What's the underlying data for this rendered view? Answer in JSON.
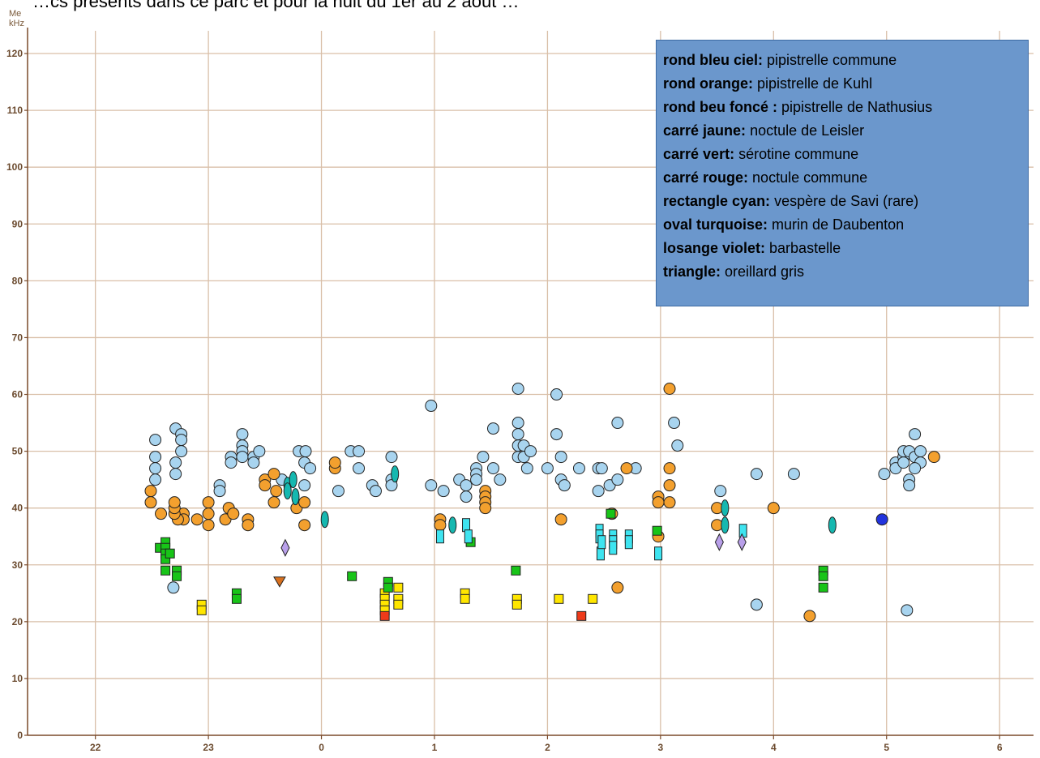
{
  "caption": "…cs présents dans ce parc et pour la nuit du 1er au 2 août …",
  "chart_data": {
    "type": "scatter",
    "title": "",
    "ylabel_top": "Me",
    "ylabel_unit": "kHz",
    "xlabel": "",
    "x_ticks": [
      {
        "value": 22,
        "label": "22"
      },
      {
        "value": 23,
        "label": "23"
      },
      {
        "value": 24,
        "label": "0"
      },
      {
        "value": 25,
        "label": "1"
      },
      {
        "value": 26,
        "label": "2"
      },
      {
        "value": 27,
        "label": "3"
      },
      {
        "value": 28,
        "label": "4"
      },
      {
        "value": 29,
        "label": "5"
      },
      {
        "value": 30,
        "label": "6"
      }
    ],
    "xlim": [
      21.4,
      30.3
    ],
    "ylim": [
      0,
      124
    ],
    "y_ticks": [
      0,
      10,
      20,
      30,
      40,
      50,
      60,
      70,
      80,
      90,
      100,
      110,
      120
    ],
    "grid": true,
    "legend_position": "top-right",
    "legend": [
      {
        "key": "rond bleu ciel:",
        "desc": " pipistrelle commune"
      },
      {
        "key": "rond orange:",
        "desc": " pipistrelle de Kuhl"
      },
      {
        "key": "rond beu foncé :",
        "desc": " pipistrelle de Nathusius"
      },
      {
        "key": "carré jaune:",
        "desc": " noctule de Leisler"
      },
      {
        "key": "carré vert:",
        "desc": " sérotine commune"
      },
      {
        "key": "carré rouge:",
        "desc": " noctule commune"
      },
      {
        "key": "rectangle cyan:",
        "desc": " vespère de Savi (rare)"
      },
      {
        "key": "oval turquoise:",
        "desc": " murin de Daubenton"
      },
      {
        "key": "losange violet:",
        "desc": " barbastelle"
      },
      {
        "key": "triangle:",
        "desc": " oreillard gris"
      }
    ],
    "colors": {
      "grid": "#d9bfa8",
      "axis": "#7a4a2a",
      "pip_commune": "#a8d4ef",
      "pip_kuhl": "#f3a02e",
      "pip_nathusius": "#2233dd",
      "leisler": "#ffe600",
      "serotine": "#18c418",
      "noctule": "#ee3a1a",
      "savi": "#3ee4f0",
      "daubenton": "#16b8b0",
      "barbastelle": "#b9a0ea",
      "oreillard": "#d8701e"
    },
    "series": [
      {
        "name": "pipistrelle commune",
        "marker": "circle",
        "color": "#a8d4ef",
        "points": [
          [
            22.53,
            52
          ],
          [
            22.53,
            49
          ],
          [
            22.53,
            47
          ],
          [
            22.53,
            45
          ],
          [
            22.71,
            54
          ],
          [
            22.76,
            53
          ],
          [
            22.76,
            52
          ],
          [
            22.76,
            50
          ],
          [
            22.71,
            48
          ],
          [
            22.71,
            46
          ],
          [
            22.69,
            26
          ],
          [
            23.1,
            44
          ],
          [
            23.1,
            43
          ],
          [
            23.3,
            53
          ],
          [
            23.3,
            51
          ],
          [
            23.3,
            50
          ],
          [
            23.3,
            49
          ],
          [
            23.2,
            49
          ],
          [
            23.2,
            48
          ],
          [
            23.4,
            49
          ],
          [
            23.4,
            48
          ],
          [
            23.45,
            50
          ],
          [
            23.65,
            45
          ],
          [
            23.8,
            50
          ],
          [
            23.86,
            50
          ],
          [
            23.85,
            48
          ],
          [
            23.9,
            47
          ],
          [
            23.85,
            44
          ],
          [
            24.15,
            43
          ],
          [
            24.26,
            50
          ],
          [
            24.33,
            50
          ],
          [
            24.33,
            47
          ],
          [
            24.45,
            44
          ],
          [
            24.48,
            43
          ],
          [
            24.62,
            49
          ],
          [
            24.62,
            45
          ],
          [
            24.62,
            44
          ],
          [
            24.97,
            58
          ],
          [
            24.97,
            44
          ],
          [
            25.08,
            43
          ],
          [
            25.22,
            45
          ],
          [
            25.28,
            44
          ],
          [
            25.28,
            42
          ],
          [
            25.37,
            47
          ],
          [
            25.37,
            46
          ],
          [
            25.37,
            45
          ],
          [
            25.43,
            49
          ],
          [
            25.52,
            54
          ],
          [
            25.52,
            47
          ],
          [
            25.58,
            45
          ],
          [
            25.74,
            61
          ],
          [
            25.74,
            55
          ],
          [
            25.74,
            53
          ],
          [
            25.74,
            51
          ],
          [
            25.74,
            49
          ],
          [
            25.79,
            51
          ],
          [
            25.79,
            49
          ],
          [
            25.85,
            50
          ],
          [
            25.82,
            47
          ],
          [
            26.0,
            47
          ],
          [
            26.08,
            60
          ],
          [
            26.08,
            53
          ],
          [
            26.12,
            49
          ],
          [
            26.12,
            45
          ],
          [
            26.15,
            44
          ],
          [
            26.28,
            47
          ],
          [
            26.45,
            47
          ],
          [
            26.48,
            47
          ],
          [
            26.45,
            43
          ],
          [
            26.55,
            44
          ],
          [
            26.62,
            45
          ],
          [
            26.62,
            55
          ],
          [
            26.78,
            47
          ],
          [
            27.12,
            55
          ],
          [
            27.15,
            51
          ],
          [
            27.53,
            43
          ],
          [
            27.85,
            46
          ],
          [
            27.85,
            23
          ],
          [
            28.18,
            46
          ],
          [
            28.98,
            46
          ],
          [
            29.08,
            48
          ],
          [
            29.08,
            47
          ],
          [
            29.15,
            49
          ],
          [
            29.15,
            48
          ],
          [
            29.15,
            50
          ],
          [
            29.2,
            45
          ],
          [
            29.2,
            44
          ],
          [
            29.2,
            50
          ],
          [
            29.25,
            49
          ],
          [
            29.25,
            53
          ],
          [
            29.3,
            50
          ],
          [
            29.3,
            48
          ],
          [
            29.25,
            47
          ],
          [
            29.18,
            22
          ]
        ]
      },
      {
        "name": "pipistrelle de Kuhl",
        "marker": "circle",
        "color": "#f3a02e",
        "points": [
          [
            22.49,
            43
          ],
          [
            22.49,
            41
          ],
          [
            22.58,
            39
          ],
          [
            22.78,
            39
          ],
          [
            22.78,
            38
          ],
          [
            22.73,
            38
          ],
          [
            22.7,
            39
          ],
          [
            22.7,
            40
          ],
          [
            22.7,
            41
          ],
          [
            22.9,
            38
          ],
          [
            23.0,
            41
          ],
          [
            23.0,
            39
          ],
          [
            23.0,
            37
          ],
          [
            23.15,
            38
          ],
          [
            23.18,
            40
          ],
          [
            23.22,
            39
          ],
          [
            23.35,
            38
          ],
          [
            23.35,
            37
          ],
          [
            23.5,
            45
          ],
          [
            23.5,
            44
          ],
          [
            23.58,
            46
          ],
          [
            23.6,
            43
          ],
          [
            23.58,
            41
          ],
          [
            23.78,
            40
          ],
          [
            23.85,
            41
          ],
          [
            23.85,
            37
          ],
          [
            24.12,
            47
          ],
          [
            24.12,
            48
          ],
          [
            25.05,
            38
          ],
          [
            25.05,
            37
          ],
          [
            25.45,
            43
          ],
          [
            25.45,
            42
          ],
          [
            25.45,
            41
          ],
          [
            25.45,
            40
          ],
          [
            26.12,
            38
          ],
          [
            26.57,
            39
          ],
          [
            26.62,
            26
          ],
          [
            26.7,
            47
          ],
          [
            26.98,
            42
          ],
          [
            26.98,
            41
          ],
          [
            26.98,
            35
          ],
          [
            27.08,
            61
          ],
          [
            27.08,
            47
          ],
          [
            27.08,
            44
          ],
          [
            27.08,
            41
          ],
          [
            27.5,
            40
          ],
          [
            27.5,
            37
          ],
          [
            28.0,
            40
          ],
          [
            29.42,
            49
          ],
          [
            28.32,
            21
          ]
        ]
      },
      {
        "name": "pipistrelle de Nathusius",
        "marker": "circle",
        "color": "#2233dd",
        "points": [
          [
            28.96,
            38
          ]
        ]
      },
      {
        "name": "noctule de Leisler",
        "marker": "square",
        "color": "#ffe600",
        "points": [
          [
            22.94,
            23
          ],
          [
            22.94,
            22
          ],
          [
            24.56,
            25
          ],
          [
            24.56,
            24
          ],
          [
            24.56,
            23
          ],
          [
            24.56,
            22
          ],
          [
            24.68,
            26
          ],
          [
            24.68,
            24
          ],
          [
            24.68,
            23
          ],
          [
            25.27,
            25
          ],
          [
            25.27,
            24
          ],
          [
            25.73,
            24
          ],
          [
            25.73,
            23
          ],
          [
            26.1,
            24
          ],
          [
            26.4,
            24
          ]
        ]
      },
      {
        "name": "sérotine commune",
        "marker": "square",
        "color": "#18c418",
        "points": [
          [
            22.57,
            33
          ],
          [
            22.62,
            34
          ],
          [
            22.62,
            33
          ],
          [
            22.62,
            32
          ],
          [
            22.62,
            31
          ],
          [
            22.62,
            29
          ],
          [
            22.66,
            32
          ],
          [
            22.72,
            29
          ],
          [
            22.72,
            28
          ],
          [
            23.25,
            25
          ],
          [
            23.25,
            24
          ],
          [
            24.27,
            28
          ],
          [
            24.59,
            27
          ],
          [
            24.59,
            26
          ],
          [
            25.32,
            34
          ],
          [
            25.72,
            29
          ],
          [
            26.56,
            39
          ],
          [
            26.97,
            36
          ],
          [
            28.44,
            29
          ],
          [
            28.44,
            28
          ],
          [
            28.44,
            26
          ]
        ]
      },
      {
        "name": "noctule commune",
        "marker": "square",
        "color": "#ee3a1a",
        "points": [
          [
            24.56,
            21
          ],
          [
            26.3,
            21
          ]
        ]
      },
      {
        "name": "vespère de Savi (rare)",
        "marker": "rect",
        "color": "#3ee4f0",
        "points": [
          [
            25.05,
            35
          ],
          [
            25.28,
            37
          ],
          [
            25.3,
            35
          ],
          [
            26.46,
            36
          ],
          [
            26.46,
            35
          ],
          [
            26.47,
            32
          ],
          [
            26.48,
            34
          ],
          [
            26.58,
            35
          ],
          [
            26.58,
            34
          ],
          [
            26.58,
            33
          ],
          [
            26.72,
            35
          ],
          [
            26.72,
            34
          ],
          [
            26.98,
            32
          ],
          [
            27.73,
            36
          ]
        ]
      },
      {
        "name": "murin de Daubenton",
        "marker": "oval",
        "color": "#16b8b0",
        "points": [
          [
            23.7,
            44
          ],
          [
            23.7,
            43
          ],
          [
            23.75,
            45
          ],
          [
            23.77,
            42
          ],
          [
            24.03,
            38
          ],
          [
            24.65,
            46
          ],
          [
            25.16,
            37
          ],
          [
            27.57,
            40
          ],
          [
            27.57,
            37
          ],
          [
            28.52,
            37
          ]
        ]
      },
      {
        "name": "barbastelle",
        "marker": "diamond",
        "color": "#b9a0ea",
        "points": [
          [
            23.68,
            33
          ],
          [
            27.52,
            34
          ],
          [
            27.72,
            34
          ]
        ]
      },
      {
        "name": "oreillard gris",
        "marker": "triangle",
        "color": "#d8701e",
        "points": [
          [
            23.63,
            27
          ]
        ]
      }
    ]
  }
}
